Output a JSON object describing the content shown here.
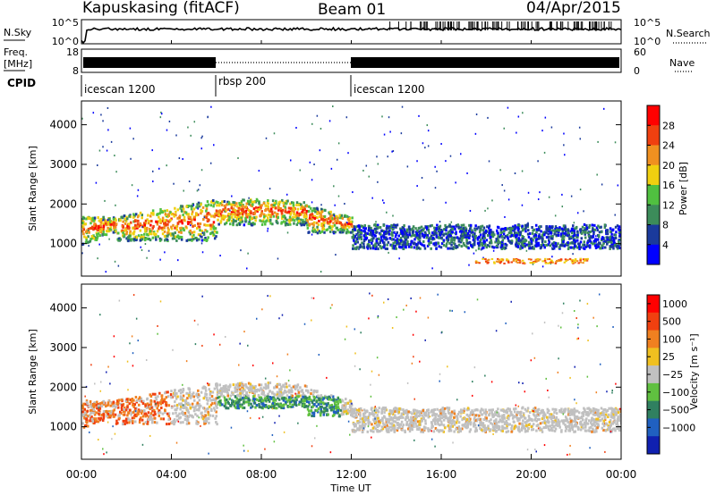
{
  "header": {
    "station": "Kapuskasing (fitACF)",
    "beam": "Beam 01",
    "date": "04/Apr/2015"
  },
  "summary": {
    "nsky_label": "N.Sky",
    "nsky_ticks": [
      "10^5",
      "10^0"
    ],
    "nsearch_label": "N.Search",
    "nsearch_ticks": [
      "10^5",
      "10^0"
    ],
    "freq_label": "Freq.",
    "freq_unit": "[MHz]",
    "freq_ticks": [
      "18",
      "8"
    ],
    "nave_label": "Nave",
    "nave_ticks": [
      "60",
      "0"
    ],
    "cpid_label": "CPID",
    "cpid_segments": [
      {
        "name": "icescan 1200",
        "start_hour": 0,
        "end_hour": 6
      },
      {
        "name": "rbsp 200",
        "start_hour": 6,
        "end_hour": 12
      },
      {
        "name": "icescan 1200",
        "start_hour": 12,
        "end_hour": 24
      }
    ]
  },
  "chart_data": {
    "type": "heatmap",
    "xlabel": "Time UT",
    "x_ticks": [
      "00:00",
      "04:00",
      "08:00",
      "12:00",
      "16:00",
      "20:00",
      "00:00"
    ],
    "x_range_hours": [
      0,
      24
    ],
    "ylabel": "Slant Range [km]",
    "y_ticks": [
      1000,
      2000,
      3000,
      4000
    ],
    "y_range_km": [
      180,
      4600
    ],
    "panels": [
      {
        "name": "power",
        "colorbar_label": "Power [dB]",
        "colorbar_ticks": [
          "4",
          "8",
          "12",
          "16",
          "20",
          "24",
          "28"
        ],
        "colors": [
          "#0000ff",
          "#1a3a9c",
          "#3c8c5a",
          "#50c040",
          "#f0d010",
          "#f09020",
          "#f04010",
          "#ff0000"
        ],
        "features": [
          {
            "start_hour": 0,
            "end_hour": 12,
            "range_km": [
              800,
              2300
            ],
            "description_level": "8-28"
          },
          {
            "start_hour": 12,
            "end_hour": 24,
            "range_km": [
              800,
              1900
            ],
            "description_level": "4-12"
          }
        ]
      },
      {
        "name": "velocity",
        "colorbar_label": "Velocity [m s⁻¹]",
        "colorbar_ticks": [
          "1000",
          "500",
          "100",
          "25",
          "−25",
          "−100",
          "−500",
          "−1000"
        ],
        "colors": [
          "#1020b0",
          "#2060c0",
          "#308060",
          "#60c040",
          "#c0c0c0",
          "#f0c020",
          "#f08020",
          "#f04010",
          "#ff0000"
        ]
      }
    ]
  }
}
